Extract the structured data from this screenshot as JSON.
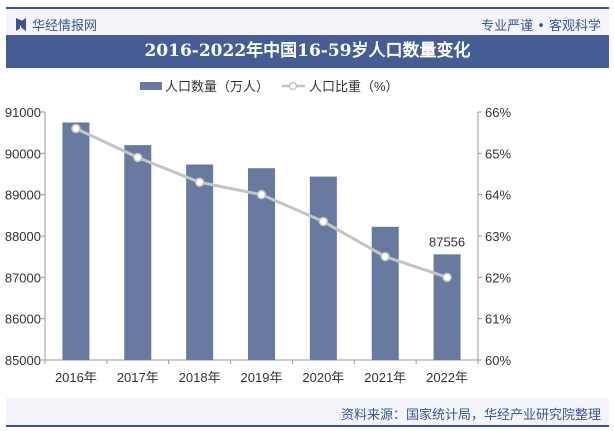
{
  "header": {
    "logo_text": "华经情报网",
    "slogan": "专业严谨 • 客观科学"
  },
  "footer": {
    "source": "资料来源：国家统计局，华经产业研究院整理"
  },
  "colors": {
    "bar": "#687aa0",
    "line": "#c4c4c4",
    "title_bg": "#455d94",
    "brand": "#3b5495"
  },
  "chart_data": {
    "type": "bar+line",
    "title": "2016-2022年中国16-59岁人口数量变化",
    "categories": [
      "2016年",
      "2017年",
      "2018年",
      "2019年",
      "2020年",
      "2021年",
      "2022年"
    ],
    "series": [
      {
        "name": "人口数量（万人）",
        "type": "bar",
        "axis": "left",
        "values": [
          90747,
          90199,
          89729,
          89640,
          89438,
          88222,
          87556
        ]
      },
      {
        "name": "人口比重（%）",
        "type": "line",
        "axis": "right",
        "values": [
          65.6,
          64.9,
          64.3,
          64.0,
          63.35,
          62.5,
          62.0
        ]
      }
    ],
    "data_labels": [
      {
        "category": "2022年",
        "text": "87556"
      }
    ],
    "y_left": {
      "range": [
        85000,
        91000
      ],
      "ticks": [
        "85000",
        "86000",
        "87000",
        "88000",
        "89000",
        "90000",
        "91000"
      ]
    },
    "y_right": {
      "range": [
        60,
        66
      ],
      "ticks": [
        "60%",
        "61%",
        "62%",
        "63%",
        "64%",
        "65%",
        "66%"
      ]
    },
    "legend": "top-center",
    "grid": false
  }
}
